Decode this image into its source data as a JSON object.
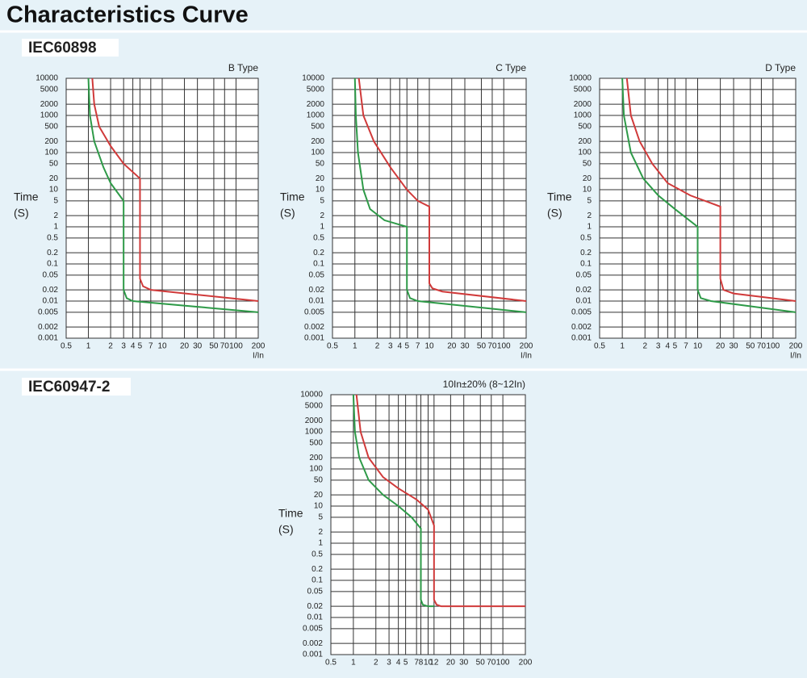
{
  "title": "Characteristics Curve",
  "sections": [
    "IEC60898",
    "IEC60947-2"
  ],
  "chart_data": [
    {
      "type": "line",
      "title": "B Type",
      "ylabel": [
        "Time",
        "(S)"
      ],
      "xlabel": "I/In",
      "xlog": true,
      "ylog": true,
      "grid": true,
      "xlim": [
        0.5,
        200
      ],
      "ylim": [
        0.001,
        10000
      ],
      "xticks": [
        0.5,
        1,
        2,
        3,
        4,
        5,
        7,
        10,
        20,
        30,
        50,
        70,
        100,
        200
      ],
      "yticks": [
        0.001,
        0.002,
        0.005,
        0.01,
        0.02,
        0.05,
        0.1,
        0.2,
        0.5,
        1,
        2,
        5,
        10,
        20,
        50,
        100,
        200,
        500,
        1000,
        2000,
        5000,
        10000
      ],
      "series": [
        {
          "color": "#d03a3a",
          "x": [
            1.13,
            1.2,
            1.4,
            2,
            3,
            5,
            5,
            5.5,
            7,
            200
          ],
          "values": [
            10000,
            2000,
            500,
            150,
            50,
            20,
            0.04,
            0.025,
            0.02,
            0.01
          ]
        },
        {
          "color": "#2e9a48",
          "x": [
            1.0,
            1.05,
            1.2,
            1.6,
            2,
            3,
            3,
            3.3,
            4,
            200
          ],
          "values": [
            10000,
            1000,
            200,
            40,
            15,
            5,
            0.02,
            0.012,
            0.01,
            0.005
          ]
        }
      ]
    },
    {
      "type": "line",
      "title": "C Type",
      "ylabel": [
        "Time",
        "(S)"
      ],
      "xlabel": "I/In",
      "xlog": true,
      "ylog": true,
      "grid": true,
      "xlim": [
        0.5,
        200
      ],
      "ylim": [
        0.001,
        10000
      ],
      "xticks": [
        0.5,
        1,
        2,
        3,
        4,
        5,
        7,
        10,
        20,
        30,
        50,
        70,
        100,
        200
      ],
      "yticks": [
        0.001,
        0.002,
        0.005,
        0.01,
        0.02,
        0.05,
        0.1,
        0.2,
        0.5,
        1,
        2,
        5,
        10,
        20,
        50,
        100,
        200,
        500,
        1000,
        2000,
        5000,
        10000
      ],
      "series": [
        {
          "color": "#d03a3a",
          "x": [
            1.13,
            1.3,
            1.8,
            3,
            5,
            7,
            10,
            10,
            11,
            15,
            200
          ],
          "values": [
            10000,
            1000,
            200,
            40,
            10,
            5,
            3.5,
            0.03,
            0.022,
            0.018,
            0.01
          ]
        },
        {
          "color": "#2e9a48",
          "x": [
            1.0,
            1.03,
            1.1,
            1.3,
            1.6,
            2.5,
            5,
            5,
            5.5,
            7,
            200
          ],
          "values": [
            10000,
            1000,
            100,
            10,
            3,
            1.5,
            1,
            0.02,
            0.012,
            0.01,
            0.005
          ]
        }
      ]
    },
    {
      "type": "line",
      "title": "D Type",
      "ylabel": [
        "Time",
        "(S)"
      ],
      "xlabel": "I/In",
      "xlog": true,
      "ylog": true,
      "grid": true,
      "xlim": [
        0.5,
        200
      ],
      "ylim": [
        0.001,
        10000
      ],
      "xticks": [
        0.5,
        1,
        2,
        3,
        4,
        5,
        7,
        10,
        20,
        30,
        50,
        70,
        100,
        200
      ],
      "yticks": [
        0.001,
        0.002,
        0.005,
        0.01,
        0.02,
        0.05,
        0.1,
        0.2,
        0.5,
        1,
        2,
        5,
        10,
        20,
        50,
        100,
        200,
        500,
        1000,
        2000,
        5000,
        10000
      ],
      "series": [
        {
          "color": "#d03a3a",
          "x": [
            1.15,
            1.3,
            1.7,
            2.5,
            4,
            8,
            20,
            20,
            22,
            30,
            200
          ],
          "values": [
            10000,
            1000,
            200,
            50,
            15,
            7,
            3.5,
            0.04,
            0.02,
            0.016,
            0.01
          ]
        },
        {
          "color": "#2e9a48",
          "x": [
            1.0,
            1.05,
            1.3,
            1.9,
            3,
            5,
            10,
            10,
            11,
            15,
            200
          ],
          "values": [
            10000,
            1000,
            100,
            20,
            7,
            3,
            1,
            0.02,
            0.012,
            0.01,
            0.005
          ]
        }
      ]
    },
    {
      "type": "line",
      "title": "10In±20% (8~12In)",
      "ylabel": [
        "Time",
        "(S)"
      ],
      "xlog": true,
      "ylog": true,
      "grid": true,
      "xlim": [
        0.5,
        200
      ],
      "ylim": [
        0.001,
        10000
      ],
      "xticks": [
        0.5,
        1,
        2,
        3,
        4,
        5,
        7,
        8,
        10,
        12,
        20,
        30,
        50,
        70,
        100,
        200
      ],
      "yticks": [
        0.001,
        0.002,
        0.005,
        0.01,
        0.02,
        0.05,
        0.1,
        0.2,
        0.5,
        1,
        2,
        5,
        10,
        20,
        50,
        100,
        200,
        500,
        1000,
        2000,
        5000,
        10000
      ],
      "series": [
        {
          "color": "#d03a3a",
          "x": [
            1.1,
            1.25,
            1.6,
            2.5,
            4,
            7,
            10,
            12,
            12,
            13,
            15,
            200
          ],
          "values": [
            10000,
            1000,
            200,
            60,
            30,
            15,
            8,
            3,
            0.03,
            0.022,
            0.02,
            0.02
          ]
        },
        {
          "color": "#2e9a48",
          "x": [
            1.0,
            1.05,
            1.2,
            1.6,
            2.5,
            4,
            6,
            8,
            8,
            8.5,
            10,
            12
          ],
          "values": [
            10000,
            1000,
            200,
            50,
            20,
            10,
            5,
            2.5,
            0.03,
            0.022,
            0.02,
            0.02
          ]
        }
      ]
    }
  ]
}
